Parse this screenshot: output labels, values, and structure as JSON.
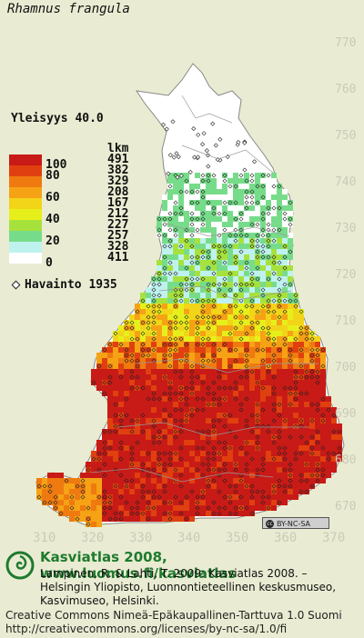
{
  "species_name": "Rhamnus frangula",
  "frequency_label": "Yleisyys  40.0",
  "legend": {
    "lkm_header": "lkm",
    "classes": [
      {
        "value": "100",
        "color": "#c81a16",
        "count": "491"
      },
      {
        "value": "80",
        "color": "#e0400f",
        "count": "382"
      },
      {
        "value": "",
        "color": "#ef7a10",
        "count": "329"
      },
      {
        "value": "60",
        "color": "#f6a215",
        "count": "208"
      },
      {
        "value": "",
        "color": "#f2d419",
        "count": "167"
      },
      {
        "value": "40",
        "color": "#e7ef1b",
        "count": "212"
      },
      {
        "value": "",
        "color": "#a7e23c",
        "count": "227"
      },
      {
        "value": "20",
        "color": "#77dc8a",
        "count": "257"
      },
      {
        "value": "",
        "color": "#bff2ef",
        "count": "328"
      },
      {
        "value": "0",
        "color": "#ffffff",
        "count": "411"
      }
    ]
  },
  "observation_label": "Havainto 1935",
  "grid_y_labels": [
    "770",
    "760",
    "750",
    "740",
    "730",
    "720",
    "710",
    "700",
    "690",
    "680",
    "670"
  ],
  "grid_x_labels": [
    "310",
    "320",
    "330",
    "340",
    "350",
    "360",
    "370"
  ],
  "license_badge": "BY-NC-SA",
  "credit": {
    "title": "Kasviatlas 2008, www.luomus.fi/kasviatlas",
    "citation": "Lampinen, R. & Lahti, T. 2009: Kasviatlas 2008. – Helsingin Yliopisto, Luonnontieteellinen keskusmuseo, Kasvimuseo, Helsinki."
  },
  "license_text": {
    "line1": "Creative Commons Nimeä-Epäkaupallinen-Tarttuva 1.0 Suomi",
    "line2": "http://creativecommons.org/licenses/by-nc-sa/1.0/fi"
  }
}
